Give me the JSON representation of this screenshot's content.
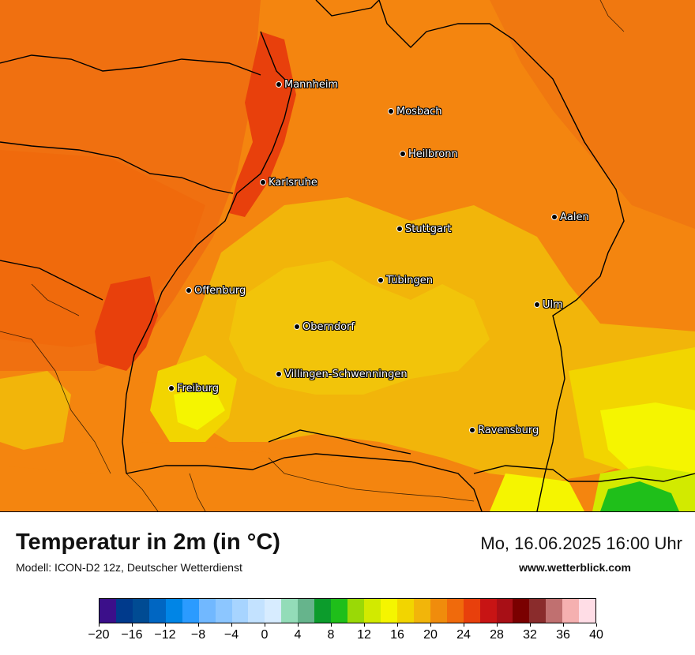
{
  "map": {
    "title": "Temperatur in 2m (in °C)",
    "model": "Modell: ICON-D2 12z, Deutscher Wetterdienst",
    "datetime": "Mo, 16.06.2025 16:00 Uhr",
    "website": "www.wetterblick.com",
    "cities": [
      {
        "name": "Mannheim"
      },
      {
        "name": "Mosbach"
      },
      {
        "name": "Heilbronn"
      },
      {
        "name": "Karlsruhe"
      },
      {
        "name": "Aalen"
      },
      {
        "name": "Stuttgart"
      },
      {
        "name": "Tübingen"
      },
      {
        "name": "Offenburg"
      },
      {
        "name": "Ulm"
      },
      {
        "name": "Oberndorf"
      },
      {
        "name": "Villingen-Schwenningen"
      },
      {
        "name": "Freiburg"
      },
      {
        "name": "Ravensburg"
      }
    ]
  },
  "legend": {
    "ticks": [
      "−20",
      "−16",
      "−12",
      "−8",
      "−4",
      "0",
      "4",
      "8",
      "12",
      "16",
      "20",
      "24",
      "28",
      "32",
      "36",
      "40"
    ],
    "min": -20,
    "max": 40,
    "step": 2,
    "colors": [
      "#3b0f8a",
      "#003a8c",
      "#004b93",
      "#0066c2",
      "#0085e6",
      "#2b9bff",
      "#71b8ff",
      "#8cc6ff",
      "#a7d4ff",
      "#c3e2ff",
      "#d7ecff",
      "#93dcb8",
      "#66b48c",
      "#0c9c2c",
      "#1fbf1a",
      "#9ad906",
      "#d2ea00",
      "#f5f500",
      "#f2d500",
      "#f2b50a",
      "#f08c0c",
      "#f06a0c",
      "#e8400c",
      "#c81414",
      "#a80f16",
      "#7a0000",
      "#8a2c2c",
      "#c07070",
      "#f5b0b0",
      "#ffdde6"
    ]
  }
}
